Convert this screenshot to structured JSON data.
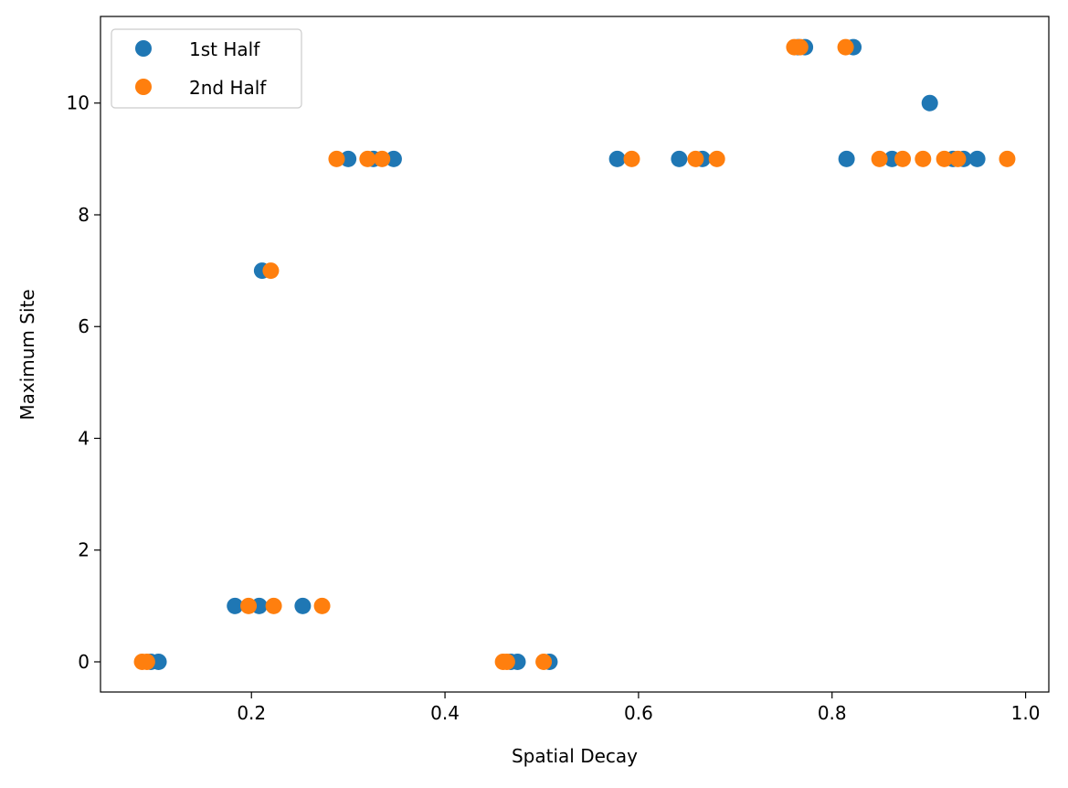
{
  "chart_data": {
    "type": "scatter",
    "title": "",
    "xlabel": "Spatial Decay",
    "ylabel": "Maximum Site",
    "xlim": [
      0.044,
      1.024
    ],
    "ylim": [
      -0.54,
      11.55
    ],
    "xticks": [
      0.2,
      0.4,
      0.6,
      0.8,
      1.0
    ],
    "xtick_labels": [
      "0.2",
      "0.4",
      "0.6",
      "0.8",
      "1.0"
    ],
    "yticks": [
      0,
      2,
      4,
      6,
      8,
      10
    ],
    "ytick_labels": [
      "0",
      "2",
      "4",
      "6",
      "8",
      "10"
    ],
    "grid": false,
    "legend_position": "top-left",
    "series": [
      {
        "name": "1st Half",
        "color": "#1f77b4",
        "points": [
          [
            0.096,
            0
          ],
          [
            0.104,
            0
          ],
          [
            0.468,
            0
          ],
          [
            0.475,
            0
          ],
          [
            0.508,
            0
          ],
          [
            0.183,
            1
          ],
          [
            0.208,
            1
          ],
          [
            0.253,
            1
          ],
          [
            0.211,
            7
          ],
          [
            0.3,
            9
          ],
          [
            0.326,
            9
          ],
          [
            0.347,
            9
          ],
          [
            0.578,
            9
          ],
          [
            0.642,
            9
          ],
          [
            0.666,
            9
          ],
          [
            0.815,
            9
          ],
          [
            0.862,
            9
          ],
          [
            0.925,
            9
          ],
          [
            0.936,
            9
          ],
          [
            0.95,
            9
          ],
          [
            0.901,
            10
          ],
          [
            0.765,
            11
          ],
          [
            0.772,
            11
          ],
          [
            0.822,
            11
          ]
        ]
      },
      {
        "name": "2nd Half",
        "color": "#ff7f0e",
        "points": [
          [
            0.087,
            0
          ],
          [
            0.092,
            0
          ],
          [
            0.46,
            0
          ],
          [
            0.464,
            0
          ],
          [
            0.502,
            0
          ],
          [
            0.197,
            1
          ],
          [
            0.223,
            1
          ],
          [
            0.273,
            1
          ],
          [
            0.22,
            7
          ],
          [
            0.288,
            9
          ],
          [
            0.32,
            9
          ],
          [
            0.335,
            9
          ],
          [
            0.593,
            9
          ],
          [
            0.659,
            9
          ],
          [
            0.681,
            9
          ],
          [
            0.849,
            9
          ],
          [
            0.873,
            9
          ],
          [
            0.894,
            9
          ],
          [
            0.916,
            9
          ],
          [
            0.93,
            9
          ],
          [
            0.981,
            9
          ],
          [
            0.761,
            11
          ],
          [
            0.767,
            11
          ],
          [
            0.814,
            11
          ]
        ]
      }
    ]
  }
}
